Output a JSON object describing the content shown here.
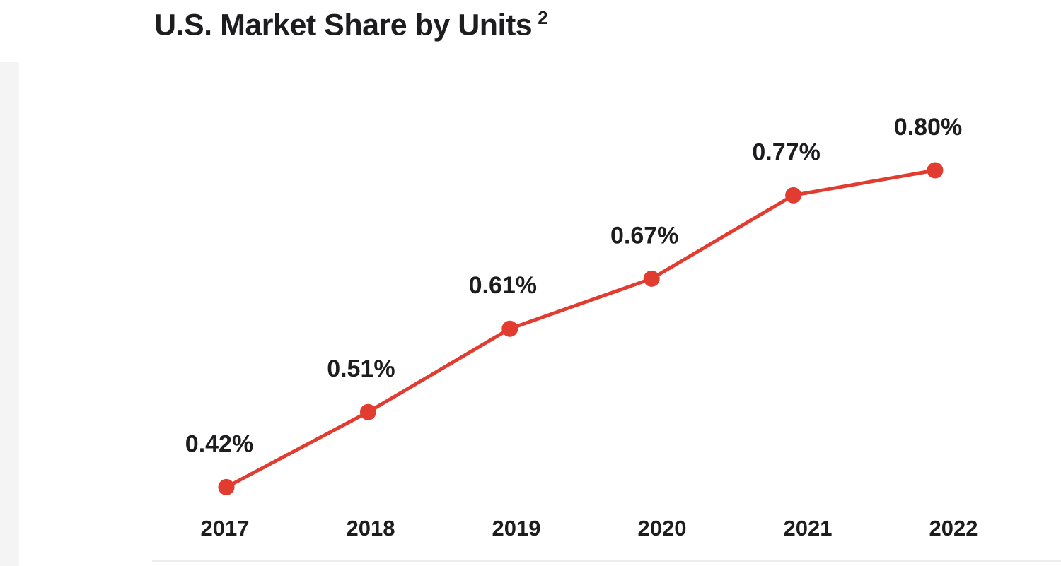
{
  "page": {
    "title": "U.S. Market Share by Units",
    "title_superscript": "2"
  },
  "chart_data": {
    "type": "line",
    "title": "U.S. Market Share by Units ²",
    "categories": [
      "2017",
      "2018",
      "2019",
      "2020",
      "2021",
      "2022"
    ],
    "series": [
      {
        "name": "U.S. Market Share by Units",
        "values": [
          0.42,
          0.51,
          0.61,
          0.67,
          0.77,
          0.8
        ]
      }
    ],
    "data_labels": [
      "0.42%",
      "0.51%",
      "0.61%",
      "0.67%",
      "0.77%",
      "0.80%"
    ],
    "xlabel": "",
    "ylabel": "",
    "ylim": [
      0.4,
      0.85
    ],
    "grid": false,
    "legend": false,
    "yaxis_visible": false,
    "line_color": "#e23b30",
    "marker_color": "#e23b30",
    "label_color": "#1d1d1f",
    "axis_label_color": "#1d1d1f"
  }
}
